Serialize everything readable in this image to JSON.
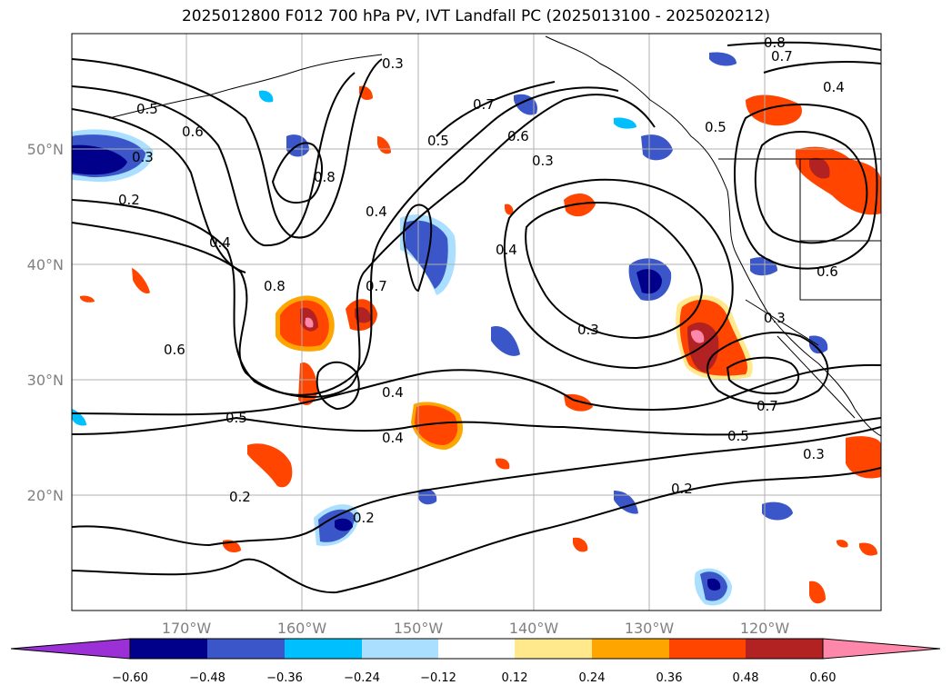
{
  "title": "2025012800 F012 700 hPa PV, IVT Landfall PC (2025013100 - 2025020212)",
  "map": {
    "lon_range": [
      -180,
      -110
    ],
    "lat_range": [
      10,
      60
    ],
    "lat_ticks": [
      {
        "value": 20,
        "label": "20°N"
      },
      {
        "value": 30,
        "label": "30°N"
      },
      {
        "value": 40,
        "label": "40°N"
      },
      {
        "value": 50,
        "label": "50°N"
      }
    ],
    "lon_ticks": [
      {
        "value": -170,
        "label": "170°W"
      },
      {
        "value": -160,
        "label": "160°W"
      },
      {
        "value": -150,
        "label": "150°W"
      },
      {
        "value": -140,
        "label": "140°W"
      },
      {
        "value": -130,
        "label": "130°W"
      },
      {
        "value": -120,
        "label": "120°W"
      }
    ],
    "grid": true,
    "contour_labels": [
      "0.2",
      "0.3",
      "0.4",
      "0.5",
      "0.6",
      "0.7",
      "0.8"
    ]
  },
  "colorbar": {
    "extend": "both",
    "colors": [
      "#9a30d6",
      "#00008b",
      "#3a56c8",
      "#00bfff",
      "#aadfff",
      "#ffffff",
      "#ffe98c",
      "#ffa500",
      "#ff4500",
      "#b22222",
      "#ff88aa"
    ],
    "tick_labels": [
      "−0.60",
      "−0.48",
      "−0.36",
      "−0.24",
      "−0.12",
      "0.12",
      "0.24",
      "0.36",
      "0.48",
      "0.60"
    ]
  }
}
